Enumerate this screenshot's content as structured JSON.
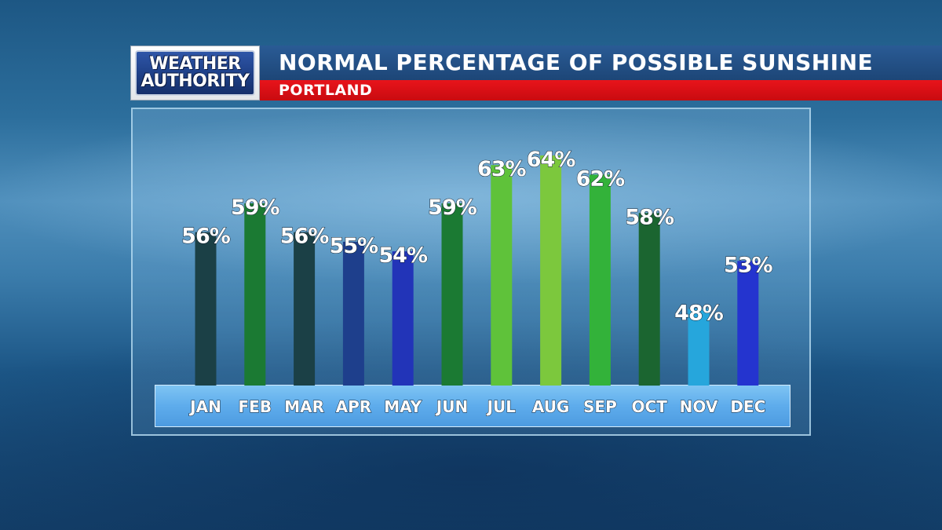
{
  "header": {
    "logo_line1": "WEATHER",
    "logo_line2": "AUTHORITY",
    "title": "NORMAL PERCENTAGE OF POSSIBLE SUNSHINE",
    "subtitle": "PORTLAND"
  },
  "colors": {
    "title_bar": "#1d4677",
    "subtitle_bar": "#d90f15",
    "axis_strip": "#5eacec"
  },
  "chart_data": {
    "type": "bar",
    "title": "NORMAL PERCENTAGE OF POSSIBLE SUNSHINE",
    "subtitle": "PORTLAND",
    "categories": [
      "JAN",
      "FEB",
      "MAR",
      "APR",
      "MAY",
      "JUN",
      "JUL",
      "AUG",
      "SEP",
      "OCT",
      "NOV",
      "DEC"
    ],
    "values": [
      56,
      59,
      56,
      55,
      54,
      59,
      63,
      64,
      62,
      58,
      48,
      53
    ],
    "labels": [
      "56%",
      "59%",
      "56%",
      "55%",
      "54%",
      "59%",
      "63%",
      "64%",
      "62%",
      "58%",
      "48%",
      "53%"
    ],
    "bar_colors": [
      "#1b4046",
      "#1b7a33",
      "#1b4046",
      "#1e3f8c",
      "#2234b8",
      "#1b7a33",
      "#5fc23a",
      "#7cc83d",
      "#33b23a",
      "#1b6530",
      "#26a6dc",
      "#2434cf"
    ],
    "xlabel": "",
    "ylabel": "",
    "grid": false,
    "legend": "none"
  }
}
